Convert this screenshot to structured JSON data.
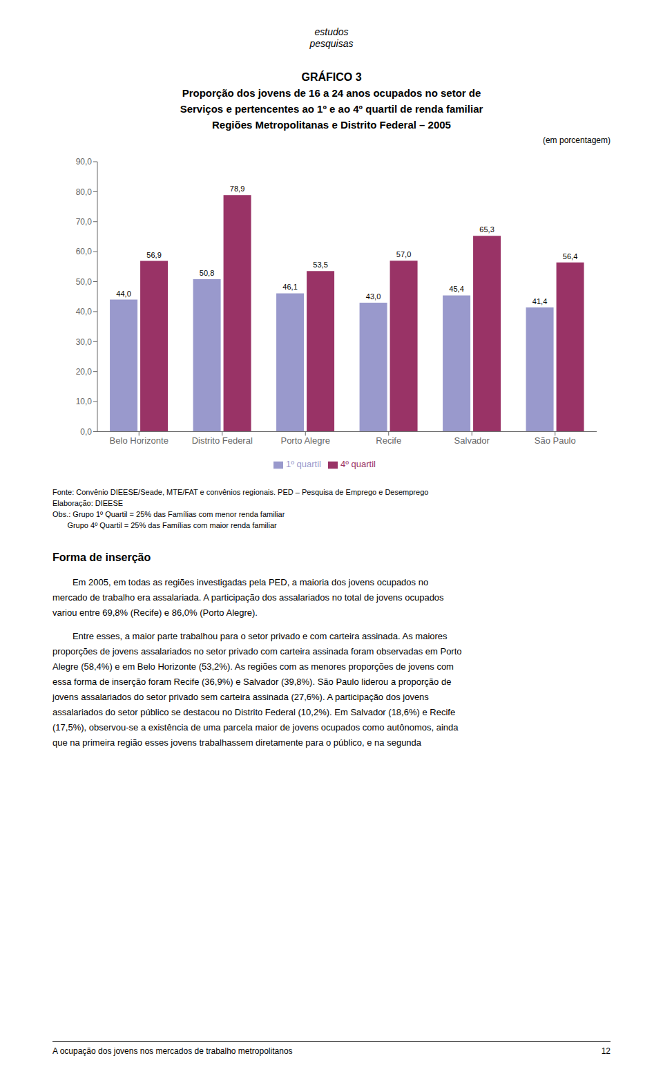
{
  "chart_data": {
    "type": "bar",
    "title": [
      "GRÁFICO 3",
      "Proporção dos jovens de 16 a 24 anos ocupados no setor de",
      "Serviços e pertencentes ao 1º e ao 4º quartil de renda familiar",
      "Regiões Metropolitanas e Distrito Federal – 2005"
    ],
    "subtitle": "(em porcentagem)",
    "categories": [
      "Belo Horizonte",
      "Distrito Federal",
      "Porto Alegre",
      "Recife",
      "Salvador",
      "São Paulo"
    ],
    "series": [
      {
        "name": "1º quartil",
        "color": "#9999CC",
        "values": [
          44.0,
          50.8,
          46.1,
          43.0,
          45.4,
          41.4
        ],
        "value_labels": [
          "44,0",
          "50,8",
          "46,1",
          "43,0",
          "45,4",
          "41,4"
        ]
      },
      {
        "name": "4º quartil",
        "color": "#993366",
        "values": [
          56.9,
          78.9,
          53.5,
          57.0,
          65.3,
          56.4
        ],
        "value_labels": [
          "56,9",
          "78,9",
          "53,5",
          "57,0",
          "65,3",
          "56,4"
        ]
      }
    ],
    "ylim": [
      0,
      90
    ],
    "yticks": [
      {
        "value": 0,
        "label": "0,0"
      },
      {
        "value": 10,
        "label": "10,0"
      },
      {
        "value": 20,
        "label": "20,0"
      },
      {
        "value": 30,
        "label": "30,0"
      },
      {
        "value": 40,
        "label": "40,0"
      },
      {
        "value": 50,
        "label": "50,0"
      },
      {
        "value": 60,
        "label": "60,0"
      },
      {
        "value": 70,
        "label": "70,0"
      },
      {
        "value": 80,
        "label": "80,0"
      },
      {
        "value": 90,
        "label": "90,0"
      }
    ],
    "grid": false,
    "legend": "bottom",
    "data_labels": true,
    "annotations": [
      "estudos",
      "pesquisas",
      "Fonte: Convênio DIEESE/Seade, MTE/FAT e convênios regionais. PED – Pesquisa de Emprego e Desemprego",
      "Elaboração: DIEESE",
      "Obs.: Grupo 1º Quartil = 25% das Famílias com menor renda familiar",
      "       Grupo 4º Quartil = 25% das Famílias com maior renda familiar",
      "Forma de inserção",
      "        Em 2005, em todas as regiões investigadas pela PED, a maioria dos jovens ocupados no",
      "mercado de trabalho era assalariada. A participação dos assalariados no total de jovens ocupados",
      "variou entre 69,8% (Recife) e 86,0% (Porto Alegre).",
      "        Entre esses, a maior parte trabalhou para o setor privado e com carteira assinada. As maiores",
      "proporções de jovens assalariados no setor privado com carteira assinada foram observadas em Porto",
      "Alegre (58,4%) e em Belo Horizonte (53,2%). As regiões com as menores proporções de jovens com",
      "essa forma de inserção foram Recife (36,9%) e Salvador (39,8%). São Paulo liderou a proporção de",
      "jovens assalariados do setor privado sem carteira assinada (27,6%). A participação dos jovens",
      "assalariados do setor público se destacou no Distrito Federal (10,2%). Em Salvador (18,6%) e Recife",
      "(17,5%), observou-se a existência de uma parcela maior de jovens ocupados como autônomos, ainda",
      "que na primeira região esses jovens trabalhassem diretamente para o público, e na segunda",
      "A ocupação dos jovens nos mercados de trabalho metropolitanos",
      "12"
    ]
  }
}
